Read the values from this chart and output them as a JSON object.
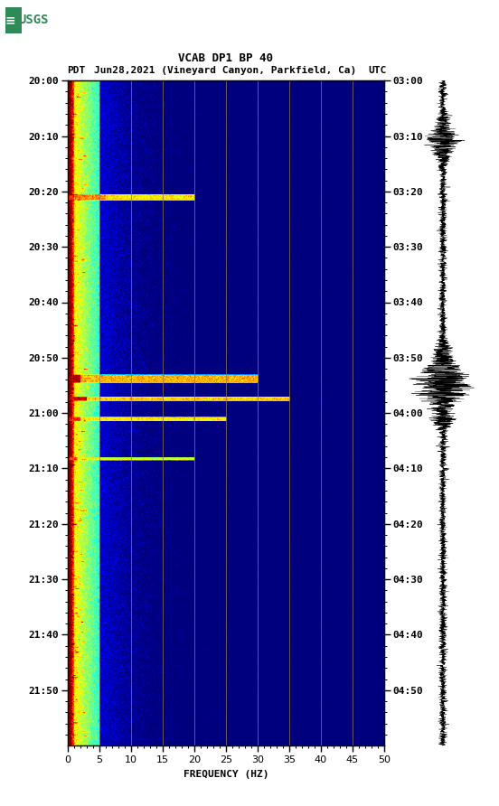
{
  "title_line1": "VCAB DP1 BP 40",
  "title_line2_left": "PDT",
  "title_line2_mid": "Jun28,2021 (Vineyard Canyon, Parkfield, Ca)",
  "title_line2_right": "UTC",
  "xlabel": "FREQUENCY (HZ)",
  "freq_min": 0,
  "freq_max": 50,
  "ytick_labels_left": [
    "20:00",
    "20:10",
    "20:20",
    "20:30",
    "20:40",
    "20:50",
    "21:00",
    "21:10",
    "21:20",
    "21:30",
    "21:40",
    "21:50"
  ],
  "ytick_labels_right": [
    "03:00",
    "03:10",
    "03:20",
    "03:30",
    "03:40",
    "03:50",
    "04:00",
    "04:10",
    "04:20",
    "04:30",
    "04:40",
    "04:50"
  ],
  "vertical_lines_freq": [
    5,
    10,
    15,
    20,
    25,
    30,
    35,
    40,
    45
  ],
  "cmap": "jet",
  "fig_width": 5.52,
  "fig_height": 8.92,
  "dpi": 100,
  "n_times": 660,
  "n_freqs": 500,
  "low_freq_cutoff_idx": 10,
  "low_freq_strong_idx": 5,
  "base_power": -2.8,
  "noise_scale": 0.25,
  "earthquake_row_1": 115,
  "earthquake_row_2": 295,
  "earthquake_row_3": 315,
  "earthquake_row_4": 335,
  "earthquake_spread": 3
}
